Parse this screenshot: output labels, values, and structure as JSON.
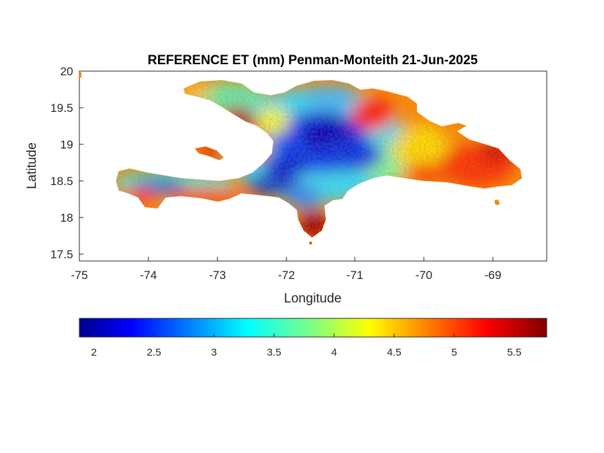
{
  "title": "REFERENCE ET (mm) Penman-Monteith 21-Jun-2025",
  "xlabel": "Longitude",
  "ylabel": "Latitude",
  "x_ticks": [
    "-75",
    "-74",
    "-73",
    "-72",
    "-71",
    "-70",
    "-69"
  ],
  "y_ticks": [
    "20",
    "19.5",
    "19",
    "18.5",
    "18",
    "17.5"
  ],
  "colorbar": {
    "colormap": "jet",
    "range": [
      1.85,
      5.75
    ],
    "ticks": [
      "2",
      "2.5",
      "3",
      "3.5",
      "4",
      "4.5",
      "5",
      "5.5"
    ]
  },
  "map": {
    "region": "Hispaniola",
    "lon_range": [
      -75,
      -68.22
    ],
    "lat_range": [
      17.42,
      20
    ],
    "high_areas": [
      "northwest peninsula",
      "southwest coast",
      "southern tip near -71.6",
      "east and northeast"
    ],
    "low_areas": [
      "central highlands",
      "southern peninsula west",
      "north-central plain"
    ]
  },
  "colors": {
    "frame": "#262626",
    "background": "#ffffff"
  }
}
